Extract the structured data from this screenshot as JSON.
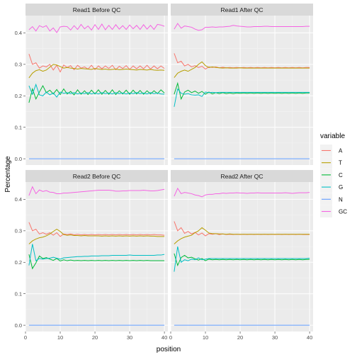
{
  "chart_data": {
    "type": "line",
    "xlabel": "position",
    "ylabel": "Percentage",
    "xlim": [
      0,
      41
    ],
    "ylim": [
      -0.02,
      0.455
    ],
    "x_ticks": [
      0,
      10,
      20,
      30,
      40
    ],
    "y_ticks": [
      "0.0",
      "0.1",
      "0.2",
      "0.3",
      "0.4"
    ],
    "y_tick_values": [
      0,
      0.1,
      0.2,
      0.3,
      0.4
    ],
    "legend": {
      "title": "variable",
      "position": "right",
      "items": [
        {
          "name": "A",
          "color": "#F8766D"
        },
        {
          "name": "T",
          "color": "#B79F00"
        },
        {
          "name": "C",
          "color": "#00BA38"
        },
        {
          "name": "G",
          "color": "#00BFC4"
        },
        {
          "name": "N",
          "color": "#619CFF"
        },
        {
          "name": "GC",
          "color": "#F564E3"
        }
      ]
    },
    "x": [
      1,
      2,
      3,
      4,
      5,
      6,
      7,
      8,
      9,
      10,
      11,
      12,
      13,
      14,
      15,
      16,
      17,
      18,
      19,
      20,
      21,
      22,
      23,
      24,
      25,
      26,
      27,
      28,
      29,
      30,
      31,
      32,
      33,
      34,
      35,
      36,
      37,
      38,
      39,
      40
    ],
    "panels": [
      {
        "title": "Read1 Before QC",
        "series": {
          "A": [
            0.333,
            0.3,
            0.305,
            0.288,
            0.295,
            0.292,
            0.3,
            0.282,
            0.297,
            0.276,
            0.298,
            0.29,
            0.296,
            0.283,
            0.297,
            0.288,
            0.292,
            0.285,
            0.297,
            0.283,
            0.295,
            0.286,
            0.295,
            0.287,
            0.297,
            0.283,
            0.294,
            0.287,
            0.296,
            0.284,
            0.295,
            0.286,
            0.295,
            0.286,
            0.297,
            0.285,
            0.295,
            0.286,
            0.295,
            0.287
          ],
          "T": [
            0.257,
            0.272,
            0.28,
            0.283,
            0.278,
            0.282,
            0.291,
            0.3,
            0.298,
            0.293,
            0.288,
            0.29,
            0.288,
            0.287,
            0.285,
            0.287,
            0.286,
            0.285,
            0.284,
            0.287,
            0.285,
            0.284,
            0.285,
            0.283,
            0.284,
            0.285,
            0.283,
            0.284,
            0.285,
            0.284,
            0.283,
            0.282,
            0.284,
            0.283,
            0.282,
            0.284,
            0.282,
            0.281,
            0.282,
            0.281
          ],
          "C": [
            0.178,
            0.222,
            0.19,
            0.212,
            0.232,
            0.21,
            0.218,
            0.206,
            0.22,
            0.204,
            0.222,
            0.206,
            0.214,
            0.203,
            0.219,
            0.205,
            0.216,
            0.204,
            0.218,
            0.206,
            0.219,
            0.205,
            0.217,
            0.205,
            0.219,
            0.204,
            0.216,
            0.206,
            0.218,
            0.205,
            0.218,
            0.206,
            0.217,
            0.205,
            0.216,
            0.206,
            0.216,
            0.207,
            0.219,
            0.209
          ],
          "G": [
            0.232,
            0.205,
            0.236,
            0.203,
            0.2,
            0.212,
            0.203,
            0.209,
            0.196,
            0.212,
            0.208,
            0.21,
            0.207,
            0.21,
            0.206,
            0.209,
            0.207,
            0.21,
            0.206,
            0.209,
            0.206,
            0.21,
            0.207,
            0.209,
            0.206,
            0.21,
            0.207,
            0.209,
            0.206,
            0.209,
            0.207,
            0.21,
            0.207,
            0.209,
            0.206,
            0.21,
            0.207,
            0.209,
            0.206,
            0.205
          ],
          "N": [
            0,
            0,
            0,
            0,
            0,
            0,
            0,
            0,
            0,
            0,
            0,
            0,
            0,
            0,
            0,
            0,
            0,
            0,
            0,
            0,
            0,
            0,
            0,
            0,
            0,
            0,
            0,
            0,
            0,
            0,
            0,
            0,
            0,
            0,
            0,
            0,
            0,
            0,
            0,
            0
          ],
          "GC": [
            0.41,
            0.42,
            0.406,
            0.423,
            0.418,
            0.423,
            0.406,
            0.416,
            0.401,
            0.419,
            0.421,
            0.42,
            0.409,
            0.423,
            0.411,
            0.427,
            0.413,
            0.422,
            0.409,
            0.426,
            0.411,
            0.428,
            0.41,
            0.424,
            0.411,
            0.426,
            0.412,
            0.423,
            0.411,
            0.425,
            0.413,
            0.424,
            0.411,
            0.426,
            0.412,
            0.424,
            0.411,
            0.427,
            0.425,
            0.421
          ]
        }
      },
      {
        "title": "Read1 After QC",
        "series": {
          "A": [
            0.335,
            0.305,
            0.31,
            0.295,
            0.3,
            0.292,
            0.296,
            0.29,
            0.294,
            0.285,
            0.292,
            0.29,
            0.292,
            0.289,
            0.291,
            0.289,
            0.29,
            0.289,
            0.29,
            0.289,
            0.29,
            0.289,
            0.29,
            0.289,
            0.29,
            0.289,
            0.29,
            0.289,
            0.29,
            0.289,
            0.29,
            0.289,
            0.29,
            0.289,
            0.29,
            0.289,
            0.29,
            0.289,
            0.29,
            0.29
          ],
          "T": [
            0.258,
            0.272,
            0.278,
            0.282,
            0.278,
            0.284,
            0.29,
            0.3,
            0.308,
            0.296,
            0.29,
            0.292,
            0.29,
            0.289,
            0.288,
            0.289,
            0.288,
            0.288,
            0.288,
            0.289,
            0.288,
            0.288,
            0.288,
            0.288,
            0.288,
            0.288,
            0.288,
            0.288,
            0.288,
            0.288,
            0.288,
            0.288,
            0.288,
            0.288,
            0.288,
            0.288,
            0.288,
            0.288,
            0.288,
            0.288
          ],
          "C": [
            0.205,
            0.24,
            0.19,
            0.212,
            0.218,
            0.21,
            0.215,
            0.208,
            0.214,
            0.205,
            0.212,
            0.206,
            0.21,
            0.207,
            0.21,
            0.207,
            0.209,
            0.207,
            0.209,
            0.208,
            0.209,
            0.208,
            0.209,
            0.208,
            0.209,
            0.208,
            0.209,
            0.208,
            0.209,
            0.208,
            0.209,
            0.208,
            0.209,
            0.208,
            0.209,
            0.208,
            0.209,
            0.208,
            0.209,
            0.209
          ],
          "G": [
            0.165,
            0.222,
            0.208,
            0.205,
            0.207,
            0.203,
            0.202,
            0.203,
            0.198,
            0.212,
            0.21,
            0.211,
            0.21,
            0.211,
            0.211,
            0.211,
            0.211,
            0.211,
            0.211,
            0.211,
            0.211,
            0.211,
            0.211,
            0.211,
            0.211,
            0.211,
            0.211,
            0.211,
            0.211,
            0.211,
            0.211,
            0.211,
            0.211,
            0.211,
            0.211,
            0.211,
            0.211,
            0.211,
            0.211,
            0.211
          ],
          "N": [
            0,
            0,
            0,
            0,
            0,
            0,
            0,
            0,
            0,
            0,
            0,
            0,
            0,
            0,
            0,
            0,
            0,
            0,
            0,
            0,
            0,
            0,
            0,
            0,
            0,
            0,
            0,
            0,
            0,
            0,
            0,
            0,
            0,
            0,
            0,
            0,
            0,
            0,
            0,
            0
          ],
          "GC": [
            0.412,
            0.43,
            0.415,
            0.422,
            0.42,
            0.418,
            0.412,
            0.408,
            0.41,
            0.418,
            0.418,
            0.419,
            0.418,
            0.419,
            0.419,
            0.42,
            0.421,
            0.424,
            0.422,
            0.421,
            0.42,
            0.419,
            0.419,
            0.42,
            0.42,
            0.42,
            0.421,
            0.421,
            0.42,
            0.42,
            0.42,
            0.42,
            0.42,
            0.42,
            0.42,
            0.42,
            0.42,
            0.42,
            0.421,
            0.421
          ]
        }
      },
      {
        "title": "Read2 Before QC",
        "series": {
          "A": [
            0.327,
            0.3,
            0.305,
            0.29,
            0.294,
            0.289,
            0.294,
            0.286,
            0.294,
            0.282,
            0.29,
            0.288,
            0.29,
            0.287,
            0.289,
            0.287,
            0.288,
            0.287,
            0.288,
            0.287,
            0.288,
            0.287,
            0.288,
            0.287,
            0.288,
            0.287,
            0.288,
            0.287,
            0.288,
            0.287,
            0.288,
            0.287,
            0.288,
            0.287,
            0.288,
            0.287,
            0.288,
            0.287,
            0.287,
            0.286
          ],
          "T": [
            0.258,
            0.268,
            0.274,
            0.278,
            0.28,
            0.284,
            0.29,
            0.298,
            0.305,
            0.298,
            0.288,
            0.286,
            0.287,
            0.285,
            0.285,
            0.284,
            0.285,
            0.284,
            0.284,
            0.284,
            0.284,
            0.283,
            0.284,
            0.283,
            0.284,
            0.283,
            0.284,
            0.283,
            0.284,
            0.283,
            0.284,
            0.283,
            0.284,
            0.283,
            0.284,
            0.283,
            0.283,
            0.282,
            0.282,
            0.282
          ],
          "C": [
            0.225,
            0.18,
            0.198,
            0.22,
            0.212,
            0.215,
            0.21,
            0.206,
            0.212,
            0.204,
            0.208,
            0.205,
            0.207,
            0.205,
            0.206,
            0.205,
            0.206,
            0.205,
            0.206,
            0.205,
            0.206,
            0.205,
            0.206,
            0.205,
            0.206,
            0.205,
            0.206,
            0.205,
            0.206,
            0.205,
            0.206,
            0.205,
            0.206,
            0.205,
            0.206,
            0.205,
            0.205,
            0.205,
            0.205,
            0.205
          ],
          "G": [
            0.19,
            0.258,
            0.205,
            0.212,
            0.21,
            0.212,
            0.213,
            0.216,
            0.213,
            0.21,
            0.214,
            0.215,
            0.216,
            0.217,
            0.218,
            0.218,
            0.219,
            0.219,
            0.22,
            0.22,
            0.22,
            0.221,
            0.221,
            0.221,
            0.222,
            0.222,
            0.222,
            0.222,
            0.222,
            0.223,
            0.222,
            0.222,
            0.222,
            0.222,
            0.222,
            0.222,
            0.222,
            0.223,
            0.223,
            0.225
          ],
          "N": [
            0,
            0,
            0,
            0,
            0,
            0,
            0,
            0,
            0,
            0,
            0,
            0,
            0,
            0,
            0,
            0,
            0,
            0,
            0,
            0,
            0,
            0,
            0,
            0,
            0,
            0,
            0,
            0,
            0,
            0,
            0,
            0,
            0,
            0,
            0,
            0,
            0,
            0,
            0,
            0
          ],
          "GC": [
            0.412,
            0.44,
            0.418,
            0.43,
            0.425,
            0.428,
            0.423,
            0.422,
            0.418,
            0.418,
            0.42,
            0.42,
            0.421,
            0.422,
            0.423,
            0.424,
            0.425,
            0.426,
            0.427,
            0.428,
            0.429,
            0.429,
            0.429,
            0.429,
            0.428,
            0.426,
            0.426,
            0.427,
            0.427,
            0.428,
            0.428,
            0.428,
            0.428,
            0.429,
            0.428,
            0.427,
            0.427,
            0.428,
            0.43,
            0.432
          ]
        }
      },
      {
        "title": "Read2 After QC",
        "series": {
          "A": [
            0.33,
            0.3,
            0.31,
            0.292,
            0.298,
            0.29,
            0.295,
            0.287,
            0.293,
            0.284,
            0.291,
            0.289,
            0.291,
            0.288,
            0.29,
            0.288,
            0.289,
            0.288,
            0.289,
            0.288,
            0.289,
            0.288,
            0.289,
            0.288,
            0.289,
            0.288,
            0.289,
            0.288,
            0.289,
            0.288,
            0.289,
            0.288,
            0.289,
            0.288,
            0.289,
            0.288,
            0.289,
            0.288,
            0.288,
            0.288
          ],
          "T": [
            0.258,
            0.268,
            0.275,
            0.28,
            0.283,
            0.286,
            0.294,
            0.3,
            0.31,
            0.302,
            0.293,
            0.291,
            0.291,
            0.29,
            0.29,
            0.289,
            0.29,
            0.289,
            0.289,
            0.289,
            0.289,
            0.289,
            0.289,
            0.289,
            0.289,
            0.289,
            0.289,
            0.289,
            0.289,
            0.289,
            0.289,
            0.289,
            0.289,
            0.289,
            0.289,
            0.289,
            0.289,
            0.289,
            0.289,
            0.289
          ],
          "C": [
            0.228,
            0.19,
            0.215,
            0.222,
            0.214,
            0.216,
            0.211,
            0.207,
            0.212,
            0.205,
            0.21,
            0.208,
            0.209,
            0.208,
            0.209,
            0.208,
            0.209,
            0.208,
            0.209,
            0.208,
            0.209,
            0.208,
            0.209,
            0.208,
            0.209,
            0.208,
            0.209,
            0.208,
            0.209,
            0.208,
            0.209,
            0.208,
            0.209,
            0.208,
            0.209,
            0.208,
            0.209,
            0.208,
            0.209,
            0.209
          ],
          "G": [
            0.17,
            0.25,
            0.2,
            0.208,
            0.205,
            0.21,
            0.208,
            0.214,
            0.208,
            0.21,
            0.212,
            0.212,
            0.212,
            0.212,
            0.212,
            0.212,
            0.212,
            0.212,
            0.212,
            0.212,
            0.212,
            0.212,
            0.212,
            0.212,
            0.212,
            0.212,
            0.212,
            0.212,
            0.212,
            0.212,
            0.212,
            0.212,
            0.212,
            0.212,
            0.212,
            0.212,
            0.212,
            0.212,
            0.212,
            0.213
          ],
          "N": [
            0,
            0,
            0,
            0,
            0,
            0,
            0,
            0,
            0,
            0,
            0,
            0,
            0,
            0,
            0,
            0,
            0,
            0,
            0,
            0,
            0,
            0,
            0,
            0,
            0,
            0,
            0,
            0,
            0,
            0,
            0,
            0,
            0,
            0,
            0,
            0,
            0,
            0,
            0,
            0
          ],
          "GC": [
            0.41,
            0.435,
            0.418,
            0.422,
            0.42,
            0.418,
            0.414,
            0.412,
            0.408,
            0.414,
            0.416,
            0.416,
            0.418,
            0.418,
            0.42,
            0.419,
            0.42,
            0.42,
            0.421,
            0.42,
            0.42,
            0.419,
            0.42,
            0.42,
            0.421,
            0.42,
            0.42,
            0.42,
            0.42,
            0.42,
            0.42,
            0.42,
            0.421,
            0.42,
            0.419,
            0.42,
            0.421,
            0.421,
            0.421,
            0.422
          ]
        }
      }
    ]
  }
}
